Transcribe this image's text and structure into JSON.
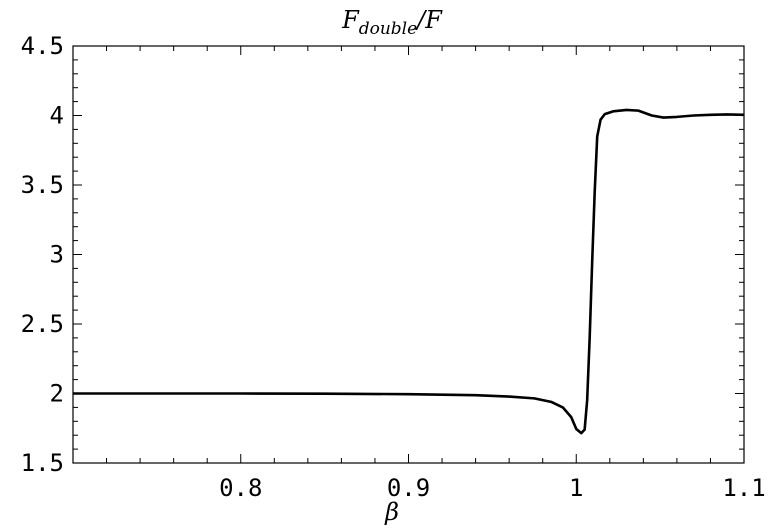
{
  "chart_data": {
    "type": "line",
    "title": "F",
    "title_subscript": "double",
    "title_suffix": "/F",
    "xlabel": "β",
    "ylabel": "",
    "xlim": [
      0.7,
      1.1
    ],
    "ylim": [
      1.5,
      4.5
    ],
    "x_ticks": [
      0.8,
      0.9,
      1.0,
      1.1
    ],
    "x_tick_labels": [
      "0.8",
      "0.9",
      "1",
      "1.1"
    ],
    "y_ticks": [
      1.5,
      2,
      2.5,
      3,
      3.5,
      4,
      4.5
    ],
    "y_tick_labels": [
      "1.5",
      "2",
      "2.5",
      "3",
      "3.5",
      "4",
      "4.5"
    ],
    "grid": false,
    "series": [
      {
        "x": [
          0.7,
          0.75,
          0.8,
          0.85,
          0.9,
          0.94,
          0.96,
          0.975,
          0.985,
          0.992,
          0.997,
          1.0,
          1.003,
          1.005,
          1.0065,
          1.008,
          1.0095,
          1.011,
          1.0125,
          1.0145,
          1.017,
          1.022,
          1.03,
          1.037,
          1.045,
          1.052,
          1.06,
          1.07,
          1.08,
          1.09,
          1.1
        ],
        "y": [
          2.0,
          2.0,
          2.0,
          1.999,
          1.995,
          1.988,
          1.978,
          1.965,
          1.94,
          1.9,
          1.83,
          1.745,
          1.715,
          1.74,
          1.95,
          2.4,
          2.95,
          3.45,
          3.85,
          3.97,
          4.01,
          4.03,
          4.04,
          4.035,
          4.0,
          3.985,
          3.99,
          4.0,
          4.005,
          4.008,
          4.005
        ]
      }
    ]
  }
}
